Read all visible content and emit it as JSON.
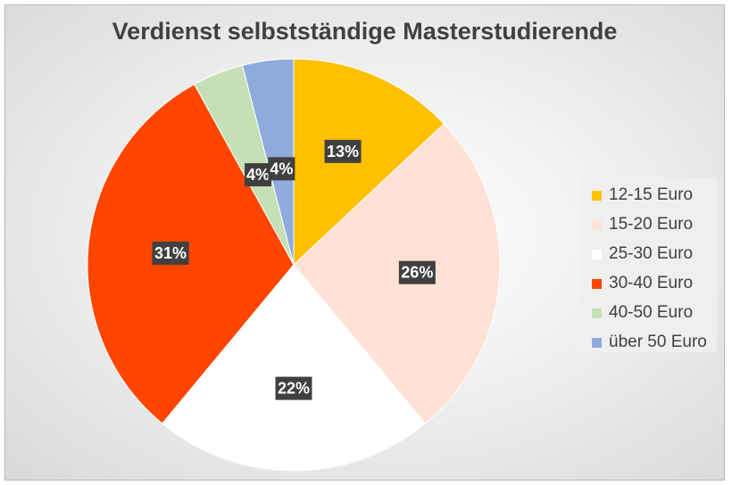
{
  "chart_data": {
    "type": "pie",
    "title": "Verdienst selbstständige Masterstudierende",
    "legend_position": "right",
    "slices": [
      {
        "label": "12-15 Euro",
        "value": 13,
        "data_label": "13%",
        "color": "#FFC000"
      },
      {
        "label": "15-20 Euro",
        "value": 26,
        "data_label": "26%",
        "color": "#FFE1D6"
      },
      {
        "label": "25-30 Euro",
        "value": 22,
        "data_label": "22%",
        "color": "#FFFFFF"
      },
      {
        "label": "30-40 Euro",
        "value": 31,
        "data_label": "31%",
        "color": "#FF4500"
      },
      {
        "label": "40-50 Euro",
        "value": 4,
        "data_label": "4%",
        "color": "#C5E0B4"
      },
      {
        "label": "über 50 Euro",
        "value": 4,
        "data_label": "4%",
        "color": "#8FAADC"
      }
    ]
  }
}
